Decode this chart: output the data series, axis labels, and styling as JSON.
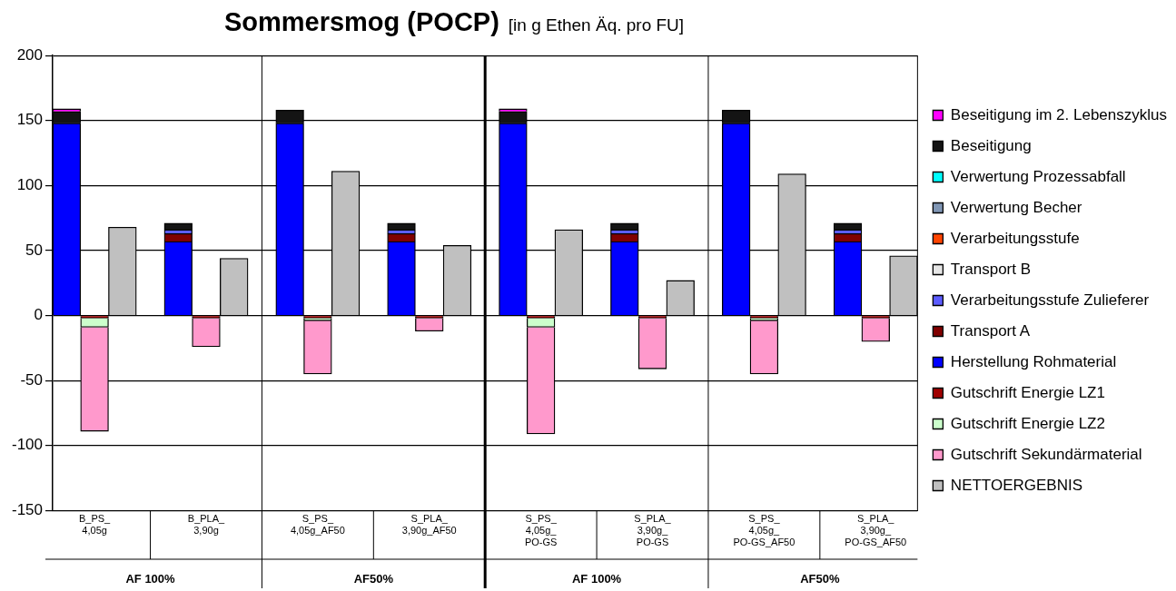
{
  "chart_data": {
    "type": "bar",
    "title": "Sommersmog (POCP)",
    "subtitle": "[in g Ethen Äq. pro FU]",
    "categories": [
      null,
      "B_PS_ 4,05g",
      null,
      null,
      null,
      "B_PLA_ 3,90g",
      null,
      null,
      null,
      "S_PS_ 4,05g_AF50",
      null,
      null,
      null,
      "S_PLA_ 3,90g_AF50",
      null,
      null,
      null,
      "S_PS_ 4,05g_ PO-GS",
      null,
      null,
      null,
      "S_PLA_ 3,90g_ PO-GS",
      null,
      null,
      null,
      "S_PS_ 4,05g_ PO-GS_AF50",
      null,
      null,
      null,
      "S_PLA_ 3,90g_ PO-GS_AF50",
      null
    ],
    "stacked": true,
    "ylim": [
      -150,
      200
    ],
    "yticks": [
      -150,
      -100,
      -50,
      0,
      50,
      100,
      150,
      200
    ],
    "grid": true,
    "legend": "right",
    "annotations": [
      "AF 100%",
      "AF50%",
      "AF 100%",
      "AF50%"
    ],
    "series": [
      {
        "name": "Herstellung Rohmaterial",
        "color": "#0000ff",
        "values": [
          148,
          null,
          null,
          null,
          57,
          null,
          null,
          null,
          148,
          null,
          null,
          null,
          57,
          null,
          null,
          null,
          148,
          null,
          null,
          null,
          57,
          null,
          null,
          null,
          148,
          null,
          null,
          null,
          57,
          null,
          null
        ]
      },
      {
        "name": "Transport A",
        "color": "#800000",
        "values": [
          null,
          null,
          null,
          null,
          6,
          null,
          null,
          null,
          null,
          null,
          null,
          null,
          6,
          null,
          null,
          null,
          null,
          null,
          null,
          null,
          6,
          null,
          null,
          null,
          null,
          null,
          null,
          null,
          6,
          null,
          null
        ]
      },
      {
        "name": "Verarbeitungsstufe Zulieferer",
        "color": "#5c5cff",
        "values": [
          null,
          null,
          null,
          null,
          3,
          null,
          null,
          null,
          null,
          null,
          null,
          null,
          3,
          null,
          null,
          null,
          null,
          null,
          null,
          null,
          3,
          null,
          null,
          null,
          null,
          null,
          null,
          null,
          3,
          null,
          null
        ]
      },
      {
        "name": "Transport B",
        "color": "#e6e6e6",
        "values": [
          null,
          null,
          null,
          null,
          null,
          null,
          null,
          null,
          null,
          null,
          null,
          null,
          null,
          null,
          null,
          null,
          null,
          null,
          null,
          null,
          null,
          null,
          null,
          null,
          null,
          null,
          null,
          null,
          null,
          null,
          null
        ]
      },
      {
        "name": "Verarbeitungsstufe",
        "color": "#ff4500",
        "values": [
          null,
          null,
          null,
          null,
          null,
          null,
          null,
          null,
          null,
          null,
          null,
          null,
          null,
          null,
          null,
          null,
          null,
          null,
          null,
          null,
          null,
          null,
          null,
          null,
          null,
          null,
          null,
          null,
          null,
          null,
          null
        ]
      },
      {
        "name": "Verwertung Becher",
        "color": "#8096b4",
        "values": [
          null,
          null,
          null,
          null,
          null,
          null,
          null,
          null,
          null,
          null,
          null,
          null,
          null,
          null,
          null,
          null,
          null,
          null,
          null,
          null,
          null,
          null,
          null,
          null,
          null,
          null,
          null,
          null,
          null,
          null,
          null
        ]
      },
      {
        "name": "Verwertung Prozessabfall",
        "color": "#00ffff",
        "values": [
          null,
          null,
          null,
          null,
          null,
          null,
          null,
          null,
          null,
          null,
          null,
          null,
          null,
          null,
          null,
          null,
          null,
          null,
          null,
          null,
          null,
          null,
          null,
          null,
          null,
          null,
          null,
          null,
          null,
          null,
          null
        ]
      },
      {
        "name": "Beseitigung",
        "color": "#141414",
        "values": [
          9,
          null,
          null,
          null,
          5,
          null,
          null,
          null,
          10,
          null,
          null,
          null,
          5,
          null,
          null,
          null,
          9,
          null,
          null,
          null,
          5,
          null,
          null,
          null,
          10,
          null,
          null,
          null,
          5,
          null,
          null
        ]
      },
      {
        "name": "Beseitigung im 2. Lebenszyklus",
        "color": "#ff00ff",
        "values": [
          2,
          null,
          null,
          null,
          null,
          null,
          null,
          null,
          null,
          null,
          null,
          null,
          null,
          null,
          null,
          null,
          2,
          null,
          null,
          null,
          null,
          null,
          null,
          null,
          null,
          null,
          null,
          null,
          null,
          null,
          null
        ]
      },
      {
        "name": "Gutschrift Energie LZ1",
        "color": "#a00000",
        "values": [
          null,
          -2,
          null,
          null,
          null,
          -2,
          null,
          null,
          null,
          -2,
          null,
          null,
          null,
          -2,
          null,
          null,
          null,
          -2,
          null,
          null,
          null,
          -2,
          null,
          null,
          null,
          -2,
          null,
          null,
          null,
          -2,
          null
        ]
      },
      {
        "name": "Gutschrift Energie LZ2",
        "color": "#ccffcc",
        "values": [
          null,
          -7,
          null,
          null,
          null,
          null,
          null,
          null,
          null,
          -2,
          null,
          null,
          null,
          null,
          null,
          null,
          null,
          -7,
          null,
          null,
          null,
          null,
          null,
          null,
          null,
          -2,
          null,
          null,
          null,
          null,
          null
        ]
      },
      {
        "name": "Gutschrift Sekundärmaterial",
        "color": "#ff99cc",
        "values": [
          null,
          -80,
          null,
          null,
          null,
          -22,
          null,
          null,
          null,
          -41,
          null,
          null,
          null,
          -10,
          null,
          null,
          null,
          -82,
          null,
          null,
          null,
          -39,
          null,
          null,
          null,
          -41,
          null,
          null,
          null,
          -18,
          null
        ]
      },
      {
        "name": "NETTOERGEBNIS",
        "color": "#c0c0c0",
        "values": [
          null,
          null,
          68,
          null,
          null,
          null,
          44,
          null,
          null,
          null,
          111,
          null,
          null,
          null,
          54,
          null,
          null,
          null,
          66,
          null,
          null,
          null,
          27,
          null,
          null,
          null,
          109,
          null,
          null,
          null,
          46
        ]
      }
    ]
  }
}
